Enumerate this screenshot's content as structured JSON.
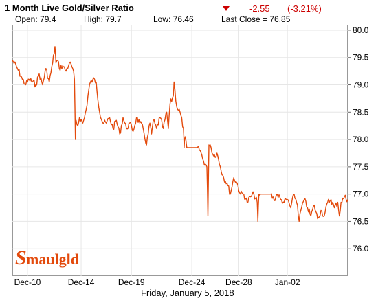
{
  "header": {
    "title": "1 Month Live Gold/Silver Ratio",
    "change_value": "-2.55",
    "change_percent": "(-3.21%)",
    "open_label": "Open: 79.4",
    "high_label": "High: 79.7",
    "low_label": "Low: 76.46",
    "last_close_label": "Last Close = 76.85"
  },
  "colors": {
    "series": "#e34a0c",
    "negative": "#cc0000",
    "grid": "#e6e6e6"
  },
  "logo_text": "Smaulgld",
  "footer": {
    "date": "Friday, January 5, 2018"
  },
  "chart_data": {
    "type": "line",
    "title": "1 Month Live Gold/Silver Ratio",
    "xlabel": "",
    "ylabel": "",
    "y_axis_position": "right",
    "ylim": [
      75.5,
      80.1
    ],
    "yticks": [
      76.0,
      76.5,
      77.0,
      77.5,
      78.0,
      78.5,
      79.0,
      79.5,
      80.0
    ],
    "ytick_labels": [
      "76.0",
      "76.5",
      "77.0",
      "77.5",
      "78.0",
      "78.5",
      "79.0",
      "79.5",
      "80.0"
    ],
    "xlim": [
      0,
      100
    ],
    "xticks": [
      {
        "x": 4.5,
        "label": "Dec-10"
      },
      {
        "x": 20.5,
        "label": "Dec-14"
      },
      {
        "x": 35.5,
        "label": "Dec-19"
      },
      {
        "x": 53.5,
        "label": "Dec-24"
      },
      {
        "x": 67.5,
        "label": "Dec-28"
      },
      {
        "x": 82.0,
        "label": "Jan-02"
      }
    ],
    "grid": true,
    "series": [
      {
        "x": [
          0,
          1.5,
          3,
          4,
          5,
          7,
          8,
          9,
          10,
          11,
          12,
          12.7,
          13,
          13.5,
          14,
          15,
          16,
          17,
          18,
          18.5,
          18.8,
          19,
          19.5,
          20,
          21,
          21.5,
          22,
          23,
          24,
          25,
          26,
          27,
          28,
          29,
          30,
          31,
          32,
          33,
          34,
          35,
          36,
          37,
          38,
          39,
          40,
          41,
          41.5,
          42,
          43,
          44,
          45,
          46,
          46.5,
          47,
          48,
          48.2,
          49,
          50,
          51,
          51.2,
          51.5,
          52,
          55,
          56,
          57,
          58,
          58.3,
          58.6,
          59,
          60,
          61,
          62,
          63,
          64,
          65,
          66,
          67,
          68,
          69,
          70,
          71,
          72,
          73,
          73.2,
          73.5,
          74,
          77,
          78,
          79,
          80,
          81,
          82,
          83,
          84,
          85,
          85.5,
          86,
          87,
          88,
          89,
          90,
          91,
          92,
          93,
          94,
          95,
          96,
          97,
          97.5,
          98,
          99,
          100
        ],
        "y": [
          79.45,
          79.3,
          79.1,
          79.0,
          79.1,
          79.0,
          79.2,
          79.0,
          79.3,
          79.05,
          79.4,
          79.7,
          79.4,
          79.45,
          79.3,
          79.35,
          79.25,
          79.4,
          79.3,
          79.1,
          78.0,
          78.35,
          78.25,
          78.4,
          78.3,
          78.4,
          78.55,
          79.0,
          79.1,
          79.05,
          78.5,
          78.3,
          78.3,
          78.4,
          78.2,
          78.35,
          78.1,
          78.4,
          78.2,
          78.3,
          78.15,
          78.4,
          78.3,
          78.2,
          77.9,
          78.3,
          78.1,
          78.35,
          78.2,
          78.4,
          78.2,
          78.5,
          78.2,
          78.65,
          78.8,
          79.05,
          78.6,
          78.5,
          78.2,
          77.85,
          78.05,
          77.85,
          77.85,
          77.8,
          77.6,
          77.5,
          76.6,
          77.9,
          77.9,
          77.7,
          77.75,
          77.5,
          77.3,
          77.2,
          77.0,
          77.3,
          77.2,
          77.0,
          77.0,
          76.85,
          76.95,
          77.0,
          76.85,
          76.5,
          77.0,
          77.0,
          77.0,
          76.9,
          77.0,
          76.9,
          76.85,
          76.9,
          76.75,
          77.0,
          76.8,
          76.5,
          76.7,
          76.9,
          76.75,
          76.6,
          76.8,
          76.55,
          76.7,
          76.6,
          76.85,
          76.9,
          76.75,
          76.85,
          76.6,
          76.85,
          76.95,
          76.9
        ]
      }
    ]
  }
}
